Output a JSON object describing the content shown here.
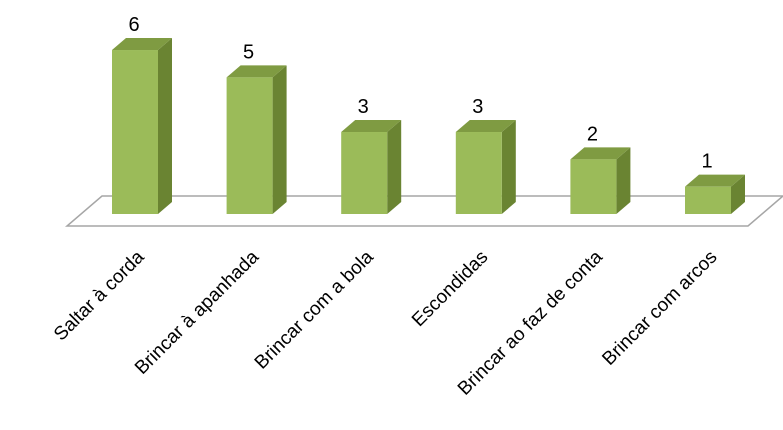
{
  "chart_data": {
    "type": "bar",
    "three_d": true,
    "categories": [
      "Saltar à corda",
      "Brincar à apanhada",
      "Brincar com a bola",
      "Escondidas",
      "Brincar ao faz de conta",
      "Brincar com arcos"
    ],
    "values": [
      6,
      5,
      3,
      3,
      2,
      1
    ],
    "data_labels": [
      "6",
      "5",
      "3",
      "3",
      "2",
      "1"
    ],
    "title": "",
    "xlabel": "",
    "ylabel": "",
    "ylim": [
      0,
      6
    ],
    "grid": false,
    "legend": "none",
    "colors": {
      "bar_front": "#9BBB59",
      "bar_top": "#7F9B42",
      "bar_side": "#6A8432",
      "floor_stroke": "#A6A6A6"
    }
  }
}
